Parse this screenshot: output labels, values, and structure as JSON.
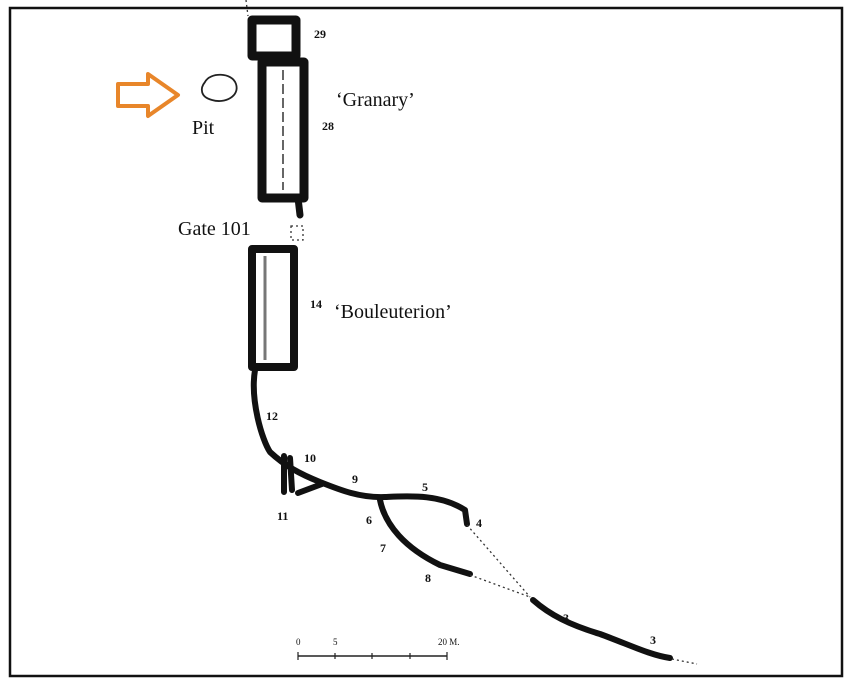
{
  "labels": {
    "building_29": "29",
    "granary": "‘Granary’",
    "pit": "Pit",
    "building_28": "28",
    "gate": "Gate 101",
    "building_14": "14",
    "bouleuterion": "‘Bouleuterion’",
    "wall_12": "12",
    "wall_10": "10",
    "wall_9": "9",
    "wall_5": "5",
    "wall_11": "11",
    "wall_6": "6",
    "wall_4": "4",
    "wall_7": "7",
    "wall_8": "8",
    "wall_3a": "3",
    "wall_3b": "3"
  },
  "scale": {
    "start": "0",
    "mid": "5",
    "end": "20 M."
  }
}
